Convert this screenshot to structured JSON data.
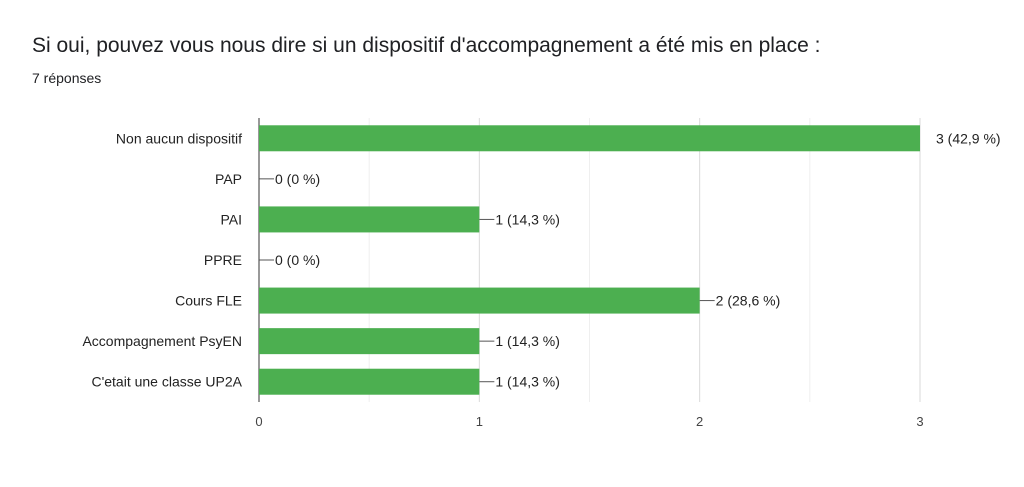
{
  "header": {
    "title": "Si oui, pouvez vous nous dire si un dispositif d'accompagnement a été mis en place :",
    "responses": "7 réponses"
  },
  "chart_data": {
    "type": "bar",
    "orientation": "horizontal",
    "categories": [
      "Non aucun dispositif",
      "PAP",
      "PAI",
      "PPRE",
      "Cours FLE",
      "Accompagnement PsyEN",
      "C'etait une classe UP2A"
    ],
    "values": [
      3,
      0,
      1,
      0,
      2,
      1,
      1
    ],
    "value_labels": [
      "3 (42,9 %)",
      "0 (0 %)",
      "1 (14,3 %)",
      "0 (0 %)",
      "2 (28,6 %)",
      "1 (14,3 %)",
      "1 (14,3 %)"
    ],
    "xlim": [
      0,
      3
    ],
    "xticks": [
      0,
      1,
      2,
      3
    ],
    "grid": true,
    "bar_color": "#4caf50"
  }
}
